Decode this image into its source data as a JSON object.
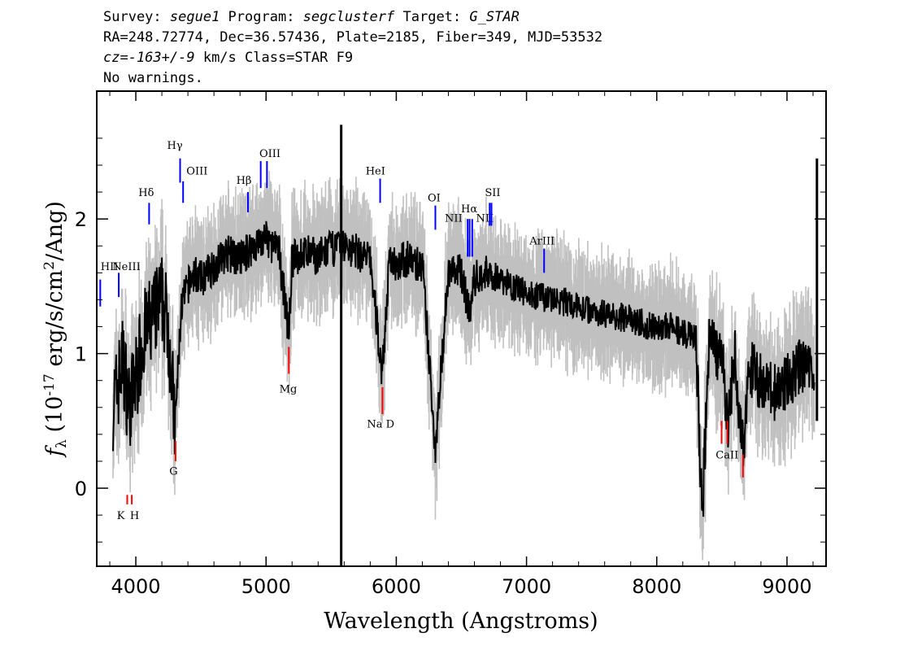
{
  "header": {
    "line1": {
      "survey_label": "Survey: ",
      "survey": "segue1",
      "program_label": " Program: ",
      "program": "segclusterf",
      "target_label": " Target: ",
      "target": "G_STAR"
    },
    "line2": "RA=248.72774, Dec=36.57436, Plate=2185, Fiber=349, MJD=53532",
    "line3": {
      "cz": "cz=-163+/-9",
      "rest": " km/s Class=STAR F9"
    },
    "line4": "No warnings."
  },
  "chart_data": {
    "type": "line",
    "xlabel": "Wavelength (Angstroms)",
    "ylabel": "f_λ (10^-17 erg/s/cm^2/Ang)",
    "xlim": [
      3700,
      9300
    ],
    "ylim": [
      -0.58,
      2.95
    ],
    "xticks": [
      4000,
      5000,
      6000,
      7000,
      8000,
      9000
    ],
    "yticks": [
      0,
      1,
      2
    ],
    "series": [
      {
        "role": "flux",
        "color": "#000000",
        "x": [
          3800,
          3850,
          3900,
          3950,
          4000,
          4050,
          4100,
          4150,
          4200,
          4250,
          4300,
          4350,
          4400,
          4450,
          4500,
          4600,
          4700,
          4800,
          4900,
          5000,
          5100,
          5175,
          5200,
          5300,
          5400,
          5500,
          5600,
          5700,
          5800,
          5890,
          5950,
          6000,
          6100,
          6200,
          6300,
          6400,
          6500,
          6563,
          6600,
          6700,
          6800,
          6900,
          7000,
          7100,
          7200,
          7300,
          7400,
          7500,
          7600,
          7700,
          7800,
          7900,
          8000,
          8100,
          8200,
          8300,
          8350,
          8400,
          8450,
          8500,
          8542,
          8600,
          8662,
          8700,
          8800,
          8900,
          9000,
          9100,
          9200
        ],
        "y": [
          0.55,
          0.7,
          0.95,
          0.6,
          0.8,
          1.1,
          1.2,
          1.3,
          1.4,
          1.2,
          0.45,
          1.35,
          1.5,
          1.6,
          1.55,
          1.65,
          1.75,
          1.7,
          1.8,
          1.85,
          1.75,
          1.15,
          1.7,
          1.75,
          1.72,
          1.78,
          1.8,
          1.75,
          1.7,
          0.85,
          1.7,
          1.68,
          1.7,
          1.65,
          0.3,
          1.62,
          1.6,
          1.3,
          1.55,
          1.6,
          1.55,
          1.5,
          1.45,
          1.42,
          1.4,
          1.38,
          1.35,
          1.32,
          1.3,
          1.28,
          1.25,
          1.22,
          1.2,
          1.2,
          1.15,
          1.1,
          -0.2,
          1.1,
          1.0,
          1.05,
          0.45,
          1.0,
          0.25,
          0.9,
          0.8,
          0.7,
          0.8,
          0.9,
          0.9
        ]
      },
      {
        "role": "error-envelope",
        "color": "#c0c0c0"
      }
    ],
    "emission_lines": [
      {
        "label": "H",
        "sub": "II",
        "x": 3727
      },
      {
        "label": "NeIII",
        "x": 3869
      },
      {
        "label": "Hδ",
        "x": 4102
      },
      {
        "label": "Hγ",
        "x": 4340
      },
      {
        "label": "OIII",
        "x": 4363
      },
      {
        "label": "Hβ",
        "x": 4861
      },
      {
        "label": "OIII",
        "x": 4959
      },
      {
        "label": "OIII",
        "x": 5007
      },
      {
        "label": "HeI",
        "x": 5876
      },
      {
        "label": "OI",
        "x": 6300
      },
      {
        "label": "NII",
        "x": 6548
      },
      {
        "label": "Hα",
        "x": 6563
      },
      {
        "label": "NII",
        "x": 6583
      },
      {
        "label": "SII",
        "x": 6717
      },
      {
        "label": "SII",
        "x": 6731
      },
      {
        "label": "ArIII",
        "x": 7135
      }
    ],
    "absorption_lines": [
      {
        "label": "K",
        "x": 3934
      },
      {
        "label": "H",
        "x": 3969
      },
      {
        "label": "G",
        "x": 4305
      },
      {
        "label": "Mg",
        "x": 5175
      },
      {
        "label": "Na D",
        "x": 5894
      },
      {
        "label": "CaII",
        "x": 8498
      },
      {
        "label": "CaII",
        "x": 8542
      },
      {
        "label": "CaII",
        "x": 8662
      }
    ],
    "colors": {
      "emission": "#0000ff",
      "absorption": "#ff0000",
      "flux": "#000000",
      "error": "#c0c0c0"
    }
  }
}
